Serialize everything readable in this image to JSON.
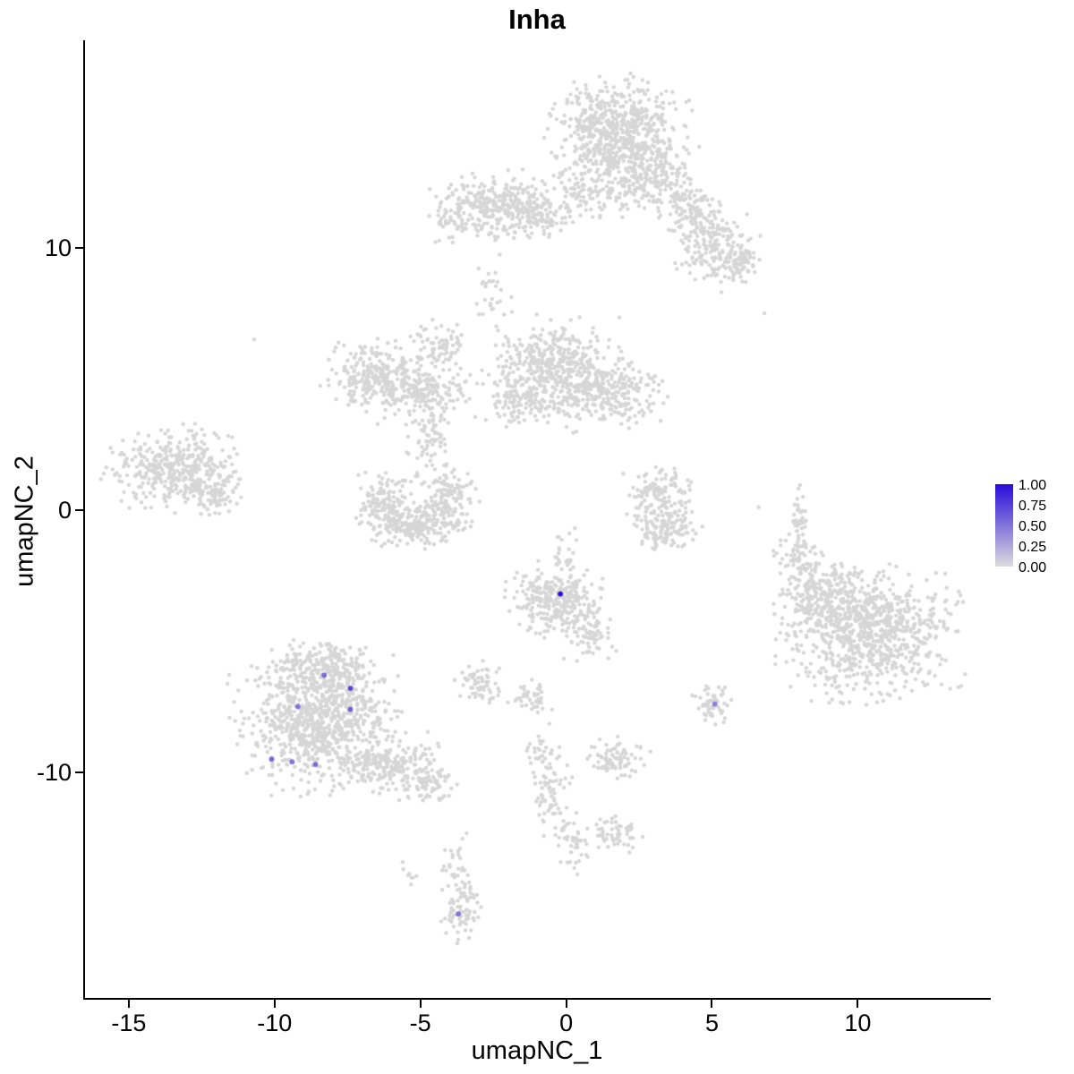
{
  "chart_data": {
    "type": "scatter",
    "title": "Inha",
    "xlabel": "umapNC_1",
    "ylabel": "umapNC_2",
    "xlim": [
      -16.5,
      14.5
    ],
    "ylim": [
      -18.6,
      17.9
    ],
    "x_ticks": [
      -15,
      -10,
      -5,
      0,
      5,
      10
    ],
    "y_ticks": [
      -10,
      0,
      10
    ],
    "grid": false,
    "point_color_base": "#D6D6D6",
    "legend": {
      "position": "right",
      "labels": [
        "1.00",
        "0.75",
        "0.50",
        "0.25",
        "0.00"
      ],
      "low_color": "#DCDCDC",
      "high_color": "#2A0BD9"
    },
    "clusters": [
      {
        "cx": 1.8,
        "cy": 14.3,
        "sx": 1.0,
        "sy": 0.9,
        "n": 650
      },
      {
        "cx": 2.9,
        "cy": 12.6,
        "sx": 0.7,
        "sy": 0.6,
        "n": 180
      },
      {
        "cx": 1.0,
        "cy": 12.0,
        "sx": 0.7,
        "sy": 0.5,
        "n": 80
      },
      {
        "cx": 4.3,
        "cy": 11.4,
        "sx": 0.5,
        "sy": 0.5,
        "n": 90
      },
      {
        "cx": 5.0,
        "cy": 10.1,
        "sx": 0.6,
        "sy": 0.7,
        "n": 170
      },
      {
        "cx": 6.0,
        "cy": 9.5,
        "sx": 0.4,
        "sy": 0.4,
        "n": 70
      },
      {
        "cx": -2.4,
        "cy": 11.6,
        "sx": 0.9,
        "sy": 0.55,
        "n": 300
      },
      {
        "cx": -0.9,
        "cy": 11.2,
        "sx": 0.55,
        "sy": 0.4,
        "n": 90
      },
      {
        "cx": -3.9,
        "cy": 10.9,
        "sx": 0.45,
        "sy": 0.35,
        "n": 40
      },
      {
        "cx": 0.4,
        "cy": 12.6,
        "sx": 0.7,
        "sy": 0.7,
        "n": 50
      },
      {
        "cx": -0.4,
        "cy": 5.4,
        "sx": 1.0,
        "sy": 0.8,
        "n": 480
      },
      {
        "cx": 1.5,
        "cy": 4.5,
        "sx": 0.8,
        "sy": 0.6,
        "n": 230
      },
      {
        "cx": -1.6,
        "cy": 4.2,
        "sx": 0.5,
        "sy": 0.5,
        "n": 90
      },
      {
        "cx": -6.5,
        "cy": 5.1,
        "sx": 0.8,
        "sy": 0.6,
        "n": 240
      },
      {
        "cx": -5.0,
        "cy": 4.5,
        "sx": 0.8,
        "sy": 0.55,
        "n": 190
      },
      {
        "cx": -4.4,
        "cy": 6.3,
        "sx": 0.45,
        "sy": 0.4,
        "n": 70
      },
      {
        "cx": -4.6,
        "cy": 2.6,
        "sx": 0.35,
        "sy": 0.8,
        "n": 80
      },
      {
        "cx": -2.5,
        "cy": 8.3,
        "sx": 0.3,
        "sy": 0.7,
        "n": 30
      },
      {
        "cx": -6.3,
        "cy": 0.4,
        "sx": 0.4,
        "sy": 0.5,
        "n": 110
      },
      {
        "cx": -5.2,
        "cy": -0.5,
        "sx": 0.8,
        "sy": 0.4,
        "n": 260
      },
      {
        "cx": -4.0,
        "cy": 0.5,
        "sx": 0.4,
        "sy": 0.5,
        "n": 110
      },
      {
        "cx": -13.5,
        "cy": 1.6,
        "sx": 1.0,
        "sy": 0.7,
        "n": 380
      },
      {
        "cx": -12.1,
        "cy": 0.7,
        "sx": 0.5,
        "sy": 0.4,
        "n": 80
      },
      {
        "cx": 3.2,
        "cy": 0.5,
        "sx": 0.5,
        "sy": 0.5,
        "n": 140
      },
      {
        "cx": 3.4,
        "cy": -0.7,
        "sx": 0.5,
        "sy": 0.4,
        "n": 110
      },
      {
        "cx": -0.3,
        "cy": -3.4,
        "sx": 0.7,
        "sy": 0.6,
        "n": 280
      },
      {
        "cx": 0.8,
        "cy": -4.7,
        "sx": 0.4,
        "sy": 0.45,
        "n": 70
      },
      {
        "cx": -0.1,
        "cy": -1.6,
        "sx": 0.25,
        "sy": 0.4,
        "n": 20
      },
      {
        "cx": 10.4,
        "cy": -4.6,
        "sx": 1.3,
        "sy": 1.1,
        "n": 850
      },
      {
        "cx": 8.6,
        "cy": -3.4,
        "sx": 0.6,
        "sy": 0.7,
        "n": 200
      },
      {
        "cx": 8.0,
        "cy": -2.0,
        "sx": 0.4,
        "sy": 0.5,
        "n": 70
      },
      {
        "cx": 8.0,
        "cy": -0.2,
        "sx": 0.12,
        "sy": 0.7,
        "n": 35
      },
      {
        "cx": -8.5,
        "cy": -8.1,
        "sx": 1.2,
        "sy": 1.1,
        "n": 850
      },
      {
        "cx": -8.3,
        "cy": -6.1,
        "sx": 0.8,
        "sy": 0.55,
        "n": 230
      },
      {
        "cx": -6.1,
        "cy": -9.7,
        "sx": 0.8,
        "sy": 0.5,
        "n": 210
      },
      {
        "cx": -4.7,
        "cy": -10.5,
        "sx": 0.5,
        "sy": 0.3,
        "n": 70
      },
      {
        "cx": -2.9,
        "cy": -6.6,
        "sx": 0.4,
        "sy": 0.35,
        "n": 60
      },
      {
        "cx": -1.2,
        "cy": -7.1,
        "sx": 0.35,
        "sy": 0.3,
        "n": 45
      },
      {
        "cx": 5.0,
        "cy": -7.4,
        "sx": 0.3,
        "sy": 0.3,
        "n": 55
      },
      {
        "cx": -0.9,
        "cy": -9.7,
        "sx": 0.3,
        "sy": 0.6,
        "n": 45
      },
      {
        "cx": -0.4,
        "cy": -11.3,
        "sx": 0.3,
        "sy": 0.7,
        "n": 55
      },
      {
        "cx": 0.3,
        "cy": -12.8,
        "sx": 0.3,
        "sy": 0.5,
        "n": 35
      },
      {
        "cx": 1.7,
        "cy": -9.5,
        "sx": 0.5,
        "sy": 0.35,
        "n": 85
      },
      {
        "cx": 1.6,
        "cy": -12.4,
        "sx": 0.4,
        "sy": 0.3,
        "n": 55
      },
      {
        "cx": -3.6,
        "cy": -15.1,
        "sx": 0.3,
        "sy": 0.55,
        "n": 75
      },
      {
        "cx": -3.9,
        "cy": -13.4,
        "sx": 0.25,
        "sy": 0.5,
        "n": 25
      },
      {
        "cx": -5.4,
        "cy": -13.8,
        "sx": 0.2,
        "sy": 0.2,
        "n": 8
      }
    ],
    "sparse_points": [
      [
        -10.7,
        6.5
      ],
      [
        6.8,
        7.5
      ],
      [
        6.6,
        0.1
      ],
      [
        -3.0,
        9.2
      ],
      [
        2.6,
        -1.3
      ],
      [
        0.3,
        -0.7
      ]
    ],
    "highlighted_points": [
      {
        "x": -0.2,
        "y": -3.2,
        "value": 1.0
      },
      {
        "x": -8.3,
        "y": -6.3,
        "value": 0.55
      },
      {
        "x": -7.4,
        "y": -6.8,
        "value": 0.75
      },
      {
        "x": -7.4,
        "y": -7.6,
        "value": 0.6
      },
      {
        "x": -9.2,
        "y": -7.5,
        "value": 0.5
      },
      {
        "x": -10.1,
        "y": -9.5,
        "value": 0.55
      },
      {
        "x": -9.4,
        "y": -9.6,
        "value": 0.5
      },
      {
        "x": -8.6,
        "y": -9.7,
        "value": 0.55
      },
      {
        "x": 5.1,
        "y": -7.4,
        "value": 0.45
      },
      {
        "x": -3.7,
        "y": -15.4,
        "value": 0.5
      }
    ]
  }
}
